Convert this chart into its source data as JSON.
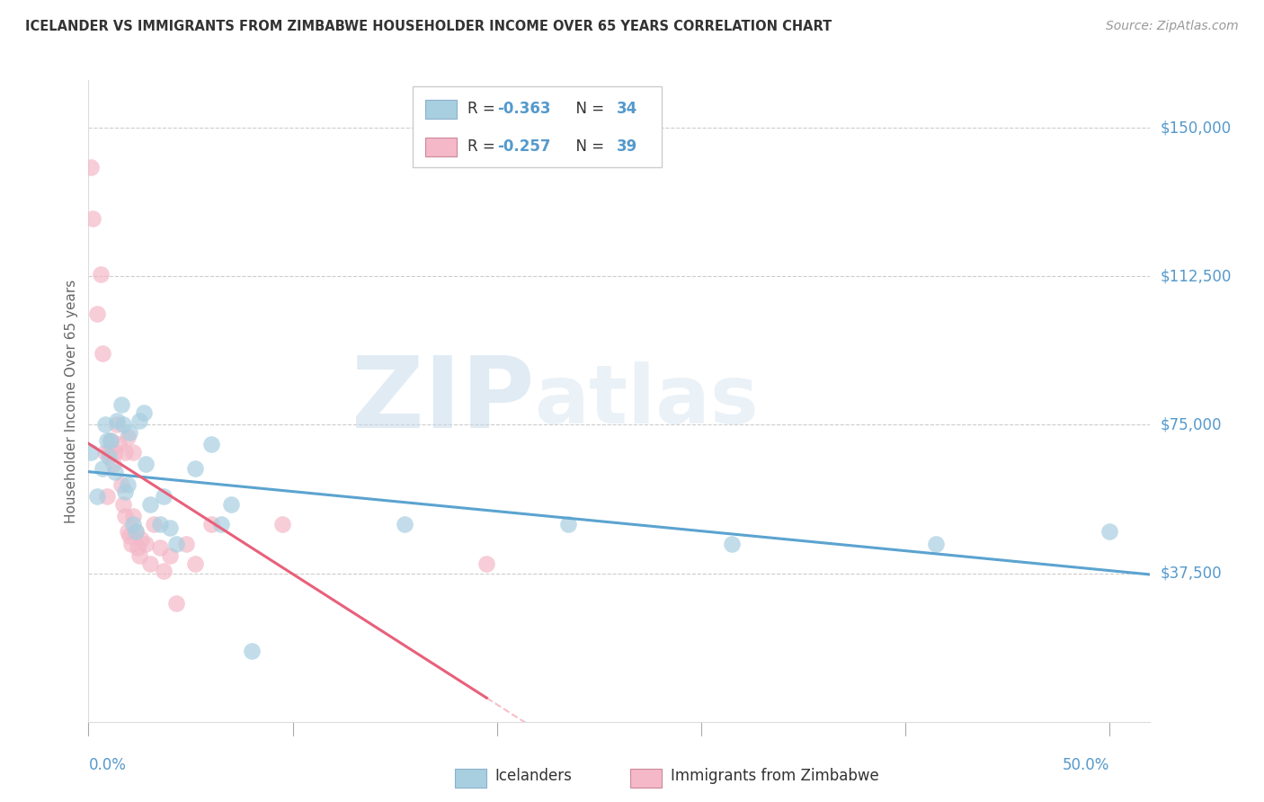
{
  "title": "ICELANDER VS IMMIGRANTS FROM ZIMBABWE HOUSEHOLDER INCOME OVER 65 YEARS CORRELATION CHART",
  "source": "Source: ZipAtlas.com",
  "ylabel": "Householder Income Over 65 years",
  "ylabel_values": [
    37500,
    75000,
    112500,
    150000
  ],
  "ylabel_ticks": [
    "$37,500",
    "$75,000",
    "$112,500",
    "$150,000"
  ],
  "ylim": [
    0,
    162000
  ],
  "xlim_pct": [
    0.0,
    0.52
  ],
  "watermark_zip": "ZIP",
  "watermark_atlas": "atlas",
  "blue_color": "#a8cfe0",
  "pink_color": "#f4b8c8",
  "blue_line_color": "#5ba3d0",
  "pink_line_color": "#e8607a",
  "title_color": "#333333",
  "axis_label_color": "#5599cc",
  "legend_text_color": "#5599cc",
  "grid_color": "#cccccc",
  "blue_scatter_x": [
    0.001,
    0.004,
    0.007,
    0.008,
    0.009,
    0.01,
    0.011,
    0.013,
    0.014,
    0.016,
    0.017,
    0.018,
    0.019,
    0.02,
    0.022,
    0.023,
    0.025,
    0.027,
    0.028,
    0.03,
    0.035,
    0.037,
    0.04,
    0.043,
    0.052,
    0.06,
    0.065,
    0.07,
    0.08,
    0.155,
    0.235,
    0.315,
    0.415,
    0.5
  ],
  "blue_scatter_y": [
    68000,
    57000,
    64000,
    75000,
    71000,
    67000,
    71000,
    63000,
    76000,
    80000,
    75000,
    58000,
    60000,
    73000,
    50000,
    48000,
    76000,
    78000,
    65000,
    55000,
    50000,
    57000,
    49000,
    45000,
    64000,
    70000,
    50000,
    55000,
    18000,
    50000,
    50000,
    45000,
    45000,
    48000
  ],
  "pink_scatter_x": [
    0.001,
    0.002,
    0.004,
    0.006,
    0.007,
    0.008,
    0.009,
    0.01,
    0.011,
    0.012,
    0.013,
    0.014,
    0.015,
    0.016,
    0.017,
    0.018,
    0.018,
    0.019,
    0.019,
    0.02,
    0.021,
    0.022,
    0.022,
    0.023,
    0.024,
    0.025,
    0.026,
    0.028,
    0.03,
    0.032,
    0.035,
    0.037,
    0.04,
    0.043,
    0.048,
    0.052,
    0.06,
    0.095,
    0.195
  ],
  "pink_scatter_y": [
    140000,
    127000,
    103000,
    113000,
    93000,
    68000,
    57000,
    68000,
    71000,
    65000,
    68000,
    75000,
    70000,
    60000,
    55000,
    52000,
    68000,
    48000,
    72000,
    47000,
    45000,
    52000,
    68000,
    48000,
    44000,
    42000,
    46000,
    45000,
    40000,
    50000,
    44000,
    38000,
    42000,
    30000,
    45000,
    40000,
    50000,
    50000,
    40000
  ]
}
